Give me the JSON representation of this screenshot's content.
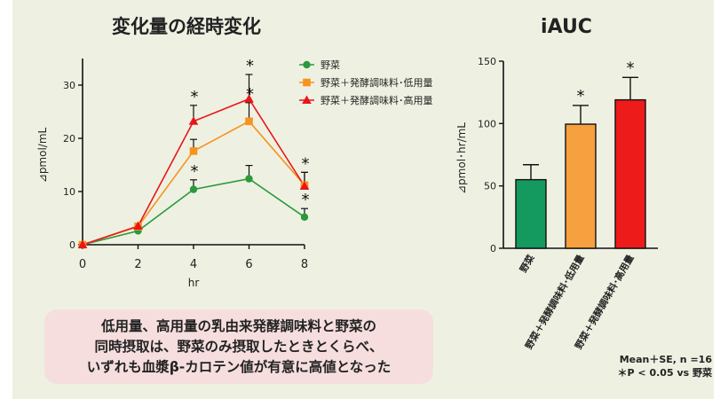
{
  "colors": {
    "veg": "#2a9a3c",
    "low": "#f7931e",
    "high": "#e8161b",
    "bar_veg": "#149a5e",
    "bar_low": "#f7a03f",
    "bar_high": "#ee1b1b",
    "panel_bg": "#eef1e2",
    "box_bg": "#f6dede"
  },
  "chart_data": [
    {
      "type": "line",
      "title": "変化量の経時変化",
      "xlabel": "hr",
      "ylabel": "⊿pmol/mL",
      "xlim": [
        0,
        8
      ],
      "ylim": [
        0,
        35
      ],
      "xticks": [
        0,
        2,
        4,
        6,
        8
      ],
      "yticks": [
        0,
        10,
        20,
        30
      ],
      "legend_position": "top-right",
      "x": [
        0,
        2,
        4,
        6,
        8
      ],
      "series": [
        {
          "name": "野菜",
          "marker": "circle",
          "values": [
            0,
            2.6,
            10.4,
            12.4,
            5.2
          ],
          "errors": [
            0,
            0.4,
            1.8,
            2.5,
            1.6
          ]
        },
        {
          "name": "野菜＋発酵調味料･低用量",
          "marker": "square",
          "values": [
            0,
            3.4,
            17.6,
            23.2,
            11.2
          ],
          "errors": [
            0,
            0.6,
            2.2,
            3.5,
            2.4
          ]
        },
        {
          "name": "野菜＋発酵調味料･高用量",
          "marker": "triangle",
          "values": [
            0,
            3.5,
            23.2,
            27.4,
            11.0
          ],
          "errors": [
            0,
            0.5,
            3.0,
            4.6,
            2.6
          ]
        }
      ],
      "significance": [
        {
          "x": 4,
          "series": 0,
          "label": "*"
        },
        {
          "x": 4,
          "series": 2,
          "label": "*"
        },
        {
          "x": 6,
          "series": 1,
          "label": "*"
        },
        {
          "x": 6,
          "series": 2,
          "label": "*"
        },
        {
          "x": 8,
          "series": 0,
          "label": "*"
        },
        {
          "x": 8,
          "series": 2,
          "label": "*"
        }
      ]
    },
    {
      "type": "bar",
      "title": "iAUC",
      "ylabel": "⊿pmol･hr/mL",
      "ylim": [
        0,
        150
      ],
      "yticks": [
        0,
        50,
        100,
        150
      ],
      "categories": [
        "野菜",
        "野菜＋発酵調味料･低用量",
        "野菜＋発酵調味料･高用量"
      ],
      "values": [
        55,
        99.5,
        119
      ],
      "errors": [
        12,
        15,
        18
      ],
      "significant": [
        false,
        true,
        true
      ],
      "significance_label": "*"
    }
  ],
  "summary_lines": [
    "低用量、高用量の乳由来発酵調味料と野菜の",
    "同時摂取は、野菜のみ摂取したときとくらべ、",
    "いずれも血漿β-カロテン値が有意に高値となった"
  ],
  "footnote": {
    "line1": "Mean＋SE, n =16",
    "line2": "＊P < 0.05 vs 野菜"
  }
}
